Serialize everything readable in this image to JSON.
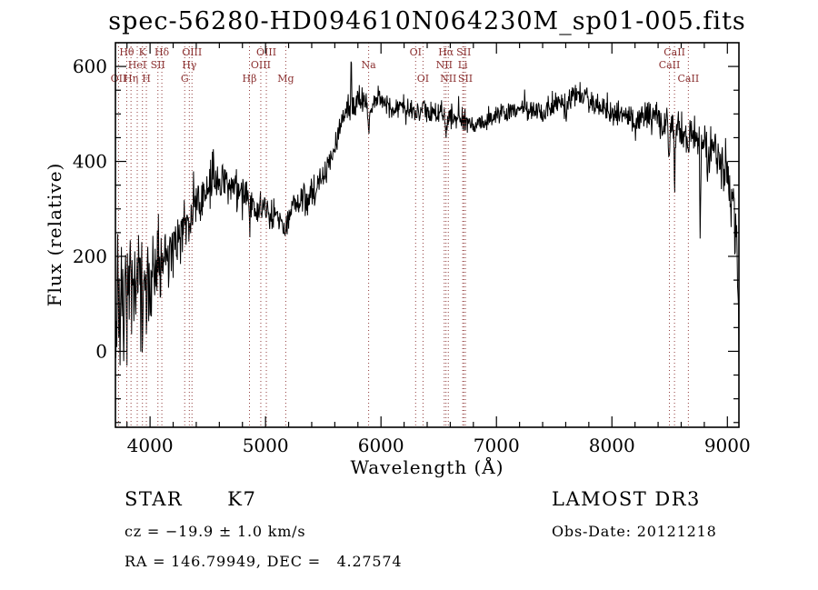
{
  "chart_data": {
    "type": "line",
    "title": "spec-56280-HD094610N064230M_sp01-005.fits",
    "xlabel": "Wavelength (Å)",
    "ylabel": "Flux (relative)",
    "xlim": [
      3700,
      9100
    ],
    "ylim": [
      -160,
      650
    ],
    "x_ticks": [
      4000,
      5000,
      6000,
      7000,
      8000,
      9000
    ],
    "y_ticks": [
      0,
      200,
      400,
      600
    ],
    "x_minor_step": 200,
    "y_minor_step": 50,
    "grid": false,
    "series_color": "#000000",
    "line_marker_color": "#8b3030",
    "noise_seed": 56280,
    "sample_step": 4,
    "continuum_anchors": {
      "x": [
        3700,
        3750,
        3800,
        3900,
        4000,
        4100,
        4200,
        4300,
        4400,
        4500,
        4600,
        4700,
        4750,
        4800,
        4900,
        5000,
        5100,
        5150,
        5200,
        5300,
        5400,
        5500,
        5600,
        5700,
        5800,
        5900,
        6000,
        6100,
        6200,
        6300,
        6400,
        6500,
        6600,
        6700,
        6800,
        6900,
        7000,
        7100,
        7200,
        7300,
        7400,
        7500,
        7600,
        7700,
        7800,
        7900,
        8000,
        8100,
        8200,
        8300,
        8400,
        8500,
        8600,
        8700,
        8800,
        8900,
        9000,
        9050,
        9080,
        9100
      ],
      "y": [
        60,
        110,
        130,
        150,
        175,
        190,
        215,
        265,
        320,
        345,
        355,
        350,
        345,
        330,
        310,
        300,
        285,
        272,
        295,
        320,
        335,
        370,
        430,
        505,
        530,
        520,
        530,
        515,
        510,
        505,
        510,
        500,
        495,
        488,
        475,
        485,
        495,
        505,
        515,
        505,
        500,
        515,
        525,
        545,
        530,
        515,
        505,
        495,
        485,
        495,
        490,
        475,
        465,
        455,
        430,
        410,
        370,
        300,
        200,
        -20
      ]
    },
    "noise_anchors": {
      "x": [
        3700,
        3800,
        3900,
        4000,
        4100,
        4200,
        4300,
        4500,
        4700,
        5000,
        5300,
        5600,
        6000,
        6500,
        7000,
        7500,
        8000,
        8300,
        8600,
        8800,
        9000,
        9100
      ],
      "amp": [
        120,
        112,
        102,
        88,
        68,
        56,
        50,
        40,
        34,
        30,
        27,
        25,
        22,
        20,
        19,
        20,
        24,
        28,
        34,
        42,
        55,
        70
      ]
    },
    "features": [
      {
        "center": 3934,
        "depth": -70,
        "width": 4
      },
      {
        "center": 3968,
        "depth": -60,
        "width": 4
      },
      {
        "center": 4101,
        "depth": -40,
        "width": 5
      },
      {
        "center": 4340,
        "depth": -30,
        "width": 5
      },
      {
        "center": 4861,
        "depth": -35,
        "width": 5
      },
      {
        "center": 5175,
        "depth": -30,
        "width": 14
      },
      {
        "center": 5742,
        "depth": 115,
        "width": 3
      },
      {
        "center": 5893,
        "depth": -70,
        "width": 7
      },
      {
        "center": 6563,
        "depth": -55,
        "width": 5
      },
      {
        "center": 7605,
        "depth": -30,
        "width": 8
      },
      {
        "center": 8498,
        "depth": -70,
        "width": 5
      },
      {
        "center": 8542,
        "depth": -95,
        "width": 5
      },
      {
        "center": 8662,
        "depth": -85,
        "width": 5
      },
      {
        "center": 8765,
        "depth": -185,
        "width": 4
      }
    ],
    "spectral_lines": [
      {
        "wavelength": 3727,
        "label": "OII",
        "row": 3
      },
      {
        "wavelength": 3798,
        "label": "Hθ",
        "row": 1
      },
      {
        "wavelength": 3835,
        "label": "Hη",
        "row": 3
      },
      {
        "wavelength": 3889,
        "label": "HeI",
        "row": 2
      },
      {
        "wavelength": 3934,
        "label": "K",
        "row": 1
      },
      {
        "wavelength": 3968,
        "label": "H",
        "row": 3
      },
      {
        "wavelength": 4068,
        "label": "SII",
        "row": 2
      },
      {
        "wavelength": 4102,
        "label": "Hδ",
        "row": 1
      },
      {
        "wavelength": 4300,
        "label": "G",
        "row": 3
      },
      {
        "wavelength": 4340,
        "label": "Hγ",
        "row": 2
      },
      {
        "wavelength": 4363,
        "label": "OIII",
        "row": 1
      },
      {
        "wavelength": 4861,
        "label": "Hβ",
        "row": 3
      },
      {
        "wavelength": 4959,
        "label": "OIII",
        "row": 2
      },
      {
        "wavelength": 5007,
        "label": "OIII",
        "row": 1
      },
      {
        "wavelength": 5175,
        "label": "Mg",
        "row": 3
      },
      {
        "wavelength": 5893,
        "label": "Na",
        "row": 2
      },
      {
        "wavelength": 6300,
        "label": "OI",
        "row": 1
      },
      {
        "wavelength": 6364,
        "label": "OI",
        "row": 3
      },
      {
        "wavelength": 6548,
        "label": "NII",
        "row": 2
      },
      {
        "wavelength": 6563,
        "label": "Hα",
        "row": 1
      },
      {
        "wavelength": 6583,
        "label": "NII",
        "row": 3
      },
      {
        "wavelength": 6708,
        "label": "Li",
        "row": 2
      },
      {
        "wavelength": 6717,
        "label": "SII",
        "row": 1
      },
      {
        "wavelength": 6731,
        "label": "SII",
        "row": 3
      },
      {
        "wavelength": 8498,
        "label": "CaII",
        "row": 2
      },
      {
        "wavelength": 8542,
        "label": "CaII",
        "row": 1
      },
      {
        "wavelength": 8662,
        "label": "CaII",
        "row": 3
      }
    ]
  },
  "annotations": {
    "class_label": "STAR      K7",
    "survey": "LAMOST DR3",
    "cz": "cz = −19.9 ± 1.0 km/s",
    "obs_date": "Obs-Date: 20121218",
    "coords": "RA = 146.79949, DEC =   4.27574"
  }
}
